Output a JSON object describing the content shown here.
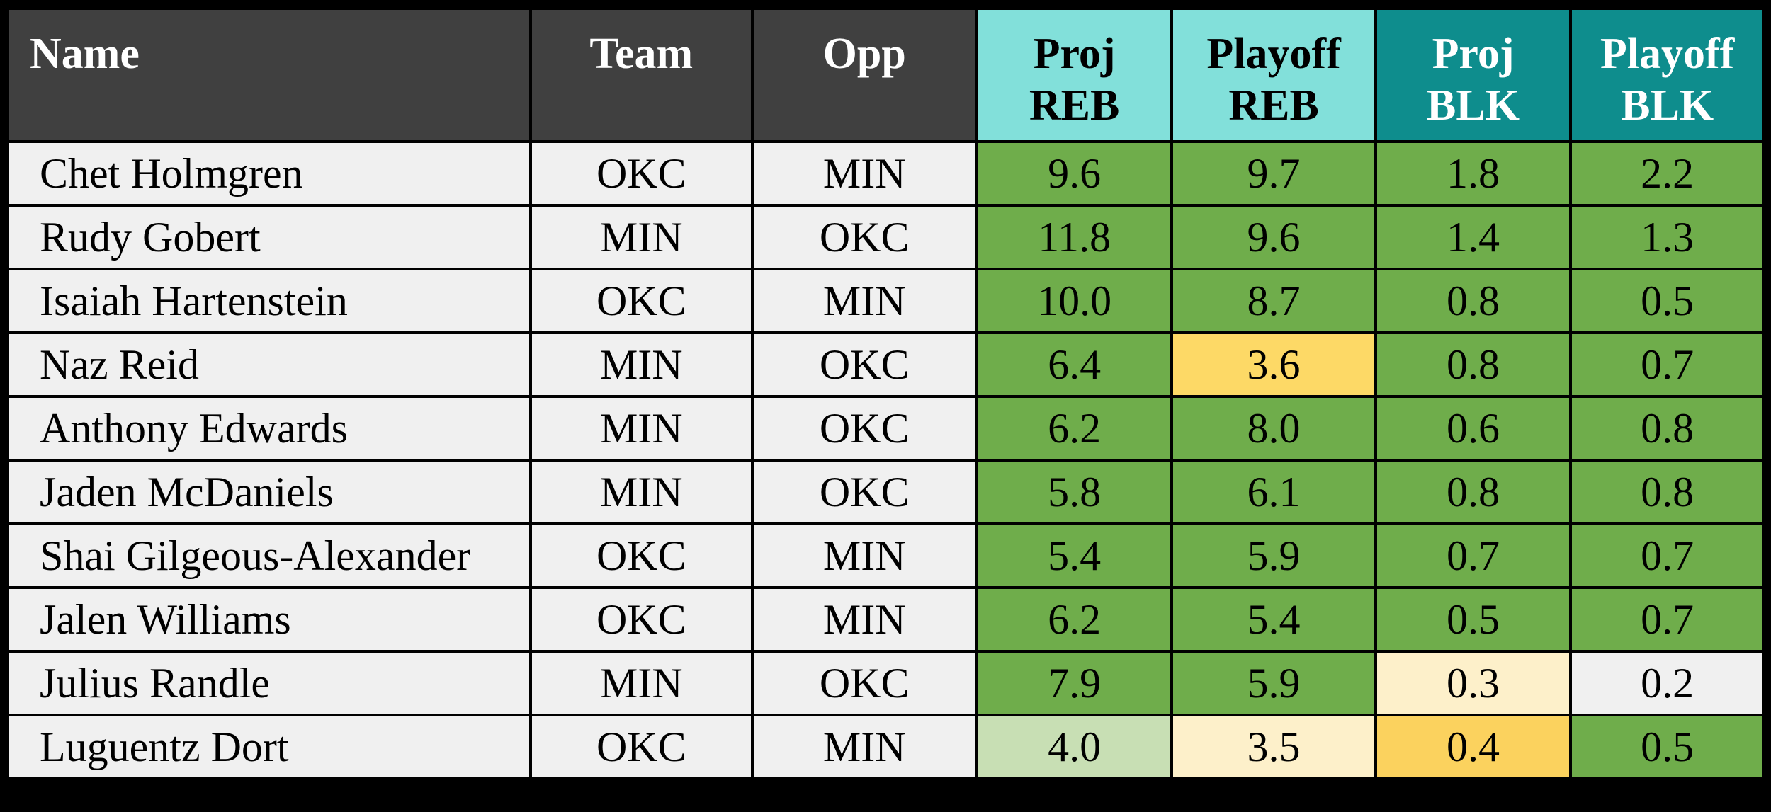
{
  "palette": {
    "border": "#000000",
    "header_dark": "#404040",
    "header_cyan": "#82e0da",
    "header_teal": "#0e8d8d",
    "header_text_light": "#ffffff",
    "text_dark": "#000000",
    "row_bg": "#f0f0f0",
    "green": "#6fad4b",
    "light_green": "#c8dfb4",
    "yellow": "#fdd966",
    "amber": "#fbd25e",
    "cream": "#fdf0ca",
    "neutral": "#f0f0f0"
  },
  "chart_data": {
    "type": "table",
    "columns": [
      {
        "label": "Name"
      },
      {
        "label": "Team"
      },
      {
        "label": "Opp"
      },
      {
        "label": "Proj REB",
        "line1": "Proj",
        "line2": "REB"
      },
      {
        "label": "Playoff REB",
        "line1": "Playoff",
        "line2": "REB"
      },
      {
        "label": "Proj BLK",
        "line1": "Proj",
        "line2": "BLK"
      },
      {
        "label": "Playoff BLK",
        "line1": "Playoff",
        "line2": "BLK"
      }
    ],
    "rows": [
      {
        "name": "Chet Holmgren",
        "team": "OKC",
        "opp": "MIN",
        "stats": [
          {
            "value": "9.6",
            "color": "green"
          },
          {
            "value": "9.7",
            "color": "green"
          },
          {
            "value": "1.8",
            "color": "green"
          },
          {
            "value": "2.2",
            "color": "green"
          }
        ]
      },
      {
        "name": "Rudy Gobert",
        "team": "MIN",
        "opp": "OKC",
        "stats": [
          {
            "value": "11.8",
            "color": "green"
          },
          {
            "value": "9.6",
            "color": "green"
          },
          {
            "value": "1.4",
            "color": "green"
          },
          {
            "value": "1.3",
            "color": "green"
          }
        ]
      },
      {
        "name": "Isaiah Hartenstein",
        "team": "OKC",
        "opp": "MIN",
        "stats": [
          {
            "value": "10.0",
            "color": "green"
          },
          {
            "value": "8.7",
            "color": "green"
          },
          {
            "value": "0.8",
            "color": "green"
          },
          {
            "value": "0.5",
            "color": "green"
          }
        ]
      },
      {
        "name": "Naz Reid",
        "team": "MIN",
        "opp": "OKC",
        "stats": [
          {
            "value": "6.4",
            "color": "green"
          },
          {
            "value": "3.6",
            "color": "yellow"
          },
          {
            "value": "0.8",
            "color": "green"
          },
          {
            "value": "0.7",
            "color": "green"
          }
        ]
      },
      {
        "name": "Anthony Edwards",
        "team": "MIN",
        "opp": "OKC",
        "stats": [
          {
            "value": "6.2",
            "color": "green"
          },
          {
            "value": "8.0",
            "color": "green"
          },
          {
            "value": "0.6",
            "color": "green"
          },
          {
            "value": "0.8",
            "color": "green"
          }
        ]
      },
      {
        "name": "Jaden McDaniels",
        "team": "MIN",
        "opp": "OKC",
        "stats": [
          {
            "value": "5.8",
            "color": "green"
          },
          {
            "value": "6.1",
            "color": "green"
          },
          {
            "value": "0.8",
            "color": "green"
          },
          {
            "value": "0.8",
            "color": "green"
          }
        ]
      },
      {
        "name": "Shai Gilgeous-Alexander",
        "team": "OKC",
        "opp": "MIN",
        "stats": [
          {
            "value": "5.4",
            "color": "green"
          },
          {
            "value": "5.9",
            "color": "green"
          },
          {
            "value": "0.7",
            "color": "green"
          },
          {
            "value": "0.7",
            "color": "green"
          }
        ]
      },
      {
        "name": "Jalen Williams",
        "team": "OKC",
        "opp": "MIN",
        "stats": [
          {
            "value": "6.2",
            "color": "green"
          },
          {
            "value": "5.4",
            "color": "green"
          },
          {
            "value": "0.5",
            "color": "green"
          },
          {
            "value": "0.7",
            "color": "green"
          }
        ]
      },
      {
        "name": "Julius Randle",
        "team": "MIN",
        "opp": "OKC",
        "stats": [
          {
            "value": "7.9",
            "color": "green"
          },
          {
            "value": "5.9",
            "color": "green"
          },
          {
            "value": "0.3",
            "color": "cream"
          },
          {
            "value": "0.2",
            "color": "neutral"
          }
        ]
      },
      {
        "name": "Luguentz Dort",
        "team": "OKC",
        "opp": "MIN",
        "stats": [
          {
            "value": "4.0",
            "color": "light_green"
          },
          {
            "value": "3.5",
            "color": "cream"
          },
          {
            "value": "0.4",
            "color": "amber"
          },
          {
            "value": "0.5",
            "color": "green"
          }
        ]
      }
    ]
  }
}
